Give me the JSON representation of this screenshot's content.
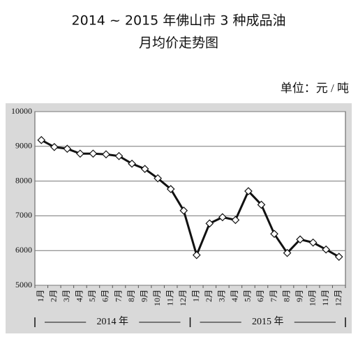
{
  "chart_data": {
    "type": "line",
    "title": "2014 ~ 2015 年佛山市 3 种成品油",
    "subtitle": "月均价走势图",
    "unit_label": "单位：元 / 吨",
    "categories": [
      "1月",
      "2月",
      "3月",
      "4月",
      "5月",
      "6月",
      "7月",
      "8月",
      "9月",
      "10月",
      "11月",
      "12月",
      "1月",
      "2月",
      "3月",
      "4月",
      "5月",
      "6月",
      "7月",
      "8月",
      "9月",
      "10月",
      "11月",
      "12月"
    ],
    "groups": [
      "2014 年",
      "2015 年"
    ],
    "series": [
      {
        "name": "月均价",
        "color": "#111111",
        "values": [
          9180,
          8980,
          8930,
          8790,
          8790,
          8770,
          8720,
          8500,
          8350,
          8080,
          7770,
          7150,
          5870,
          6780,
          6960,
          6880,
          7710,
          7320,
          6480,
          5930,
          6320,
          6230,
          6030,
          5820
        ]
      }
    ],
    "ylim": [
      5000,
      10000
    ],
    "yticks": [
      5000,
      6000,
      7000,
      8000,
      9000,
      10000
    ],
    "grid": true
  }
}
